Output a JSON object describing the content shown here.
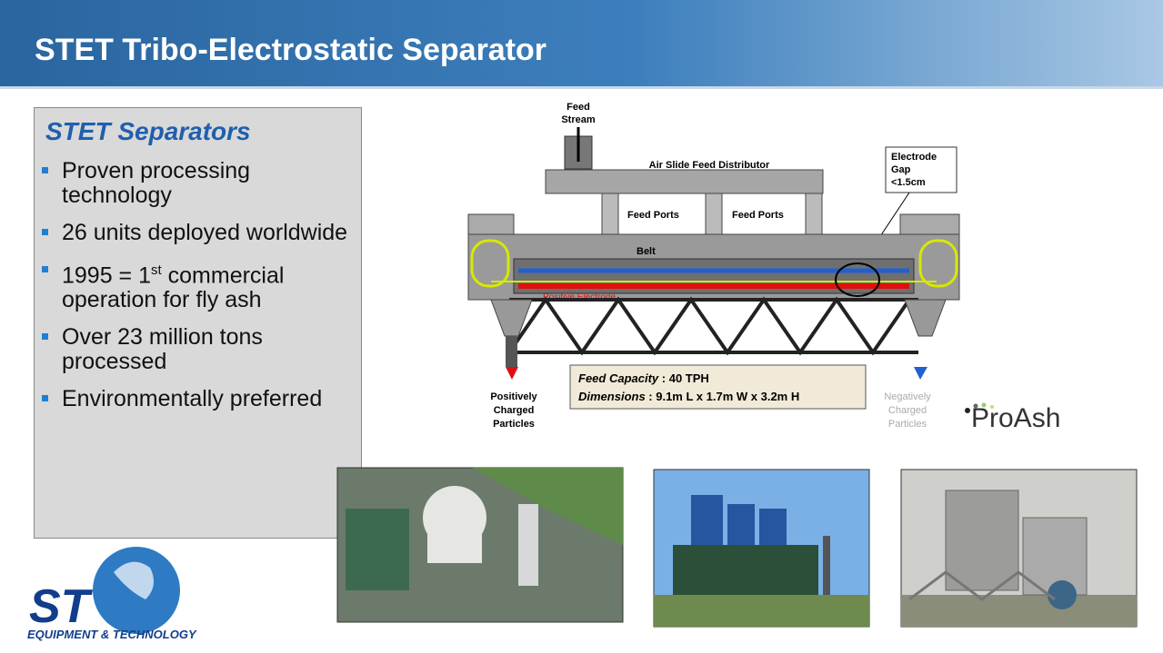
{
  "header": {
    "title": "STET Tribo-Electrostatic Separator"
  },
  "sidebar": {
    "heading": "STET Separators",
    "bullets": [
      [
        "Proven processing technology"
      ],
      [
        "26 units deployed worldwide"
      ],
      [
        "1995 = 1",
        "st",
        " commercial operation for fly ash"
      ],
      [
        "Over 23 million tons processed"
      ],
      [
        "Environmentally preferred"
      ]
    ]
  },
  "diagram": {
    "feed_stream": [
      "Feed",
      "Stream"
    ],
    "distributor": "Air Slide Feed Distributor",
    "electrode_gap": [
      "Electrode",
      "Gap",
      "<1.5cm"
    ],
    "feed_ports": [
      "Feed Ports",
      "Feed Ports"
    ],
    "belt": "Belt",
    "positive_electrode": "Positive Electrode",
    "capacity": {
      "label": "Feed Capacity",
      "value": " : 40 TPH"
    },
    "dimensions": {
      "label": "Dimensions",
      "value": " : 9.1m L x 1.7m W x 3.2m H"
    },
    "positive_particles": [
      "Positively",
      "Charged",
      "Particles"
    ],
    "negative_particles": [
      "Negatively",
      "Charged",
      "Particles"
    ]
  },
  "brand": {
    "proash": "ProAsh",
    "logo_mark": "ST",
    "logo_text": "EQUIPMENT & TECHNOLOGY"
  }
}
